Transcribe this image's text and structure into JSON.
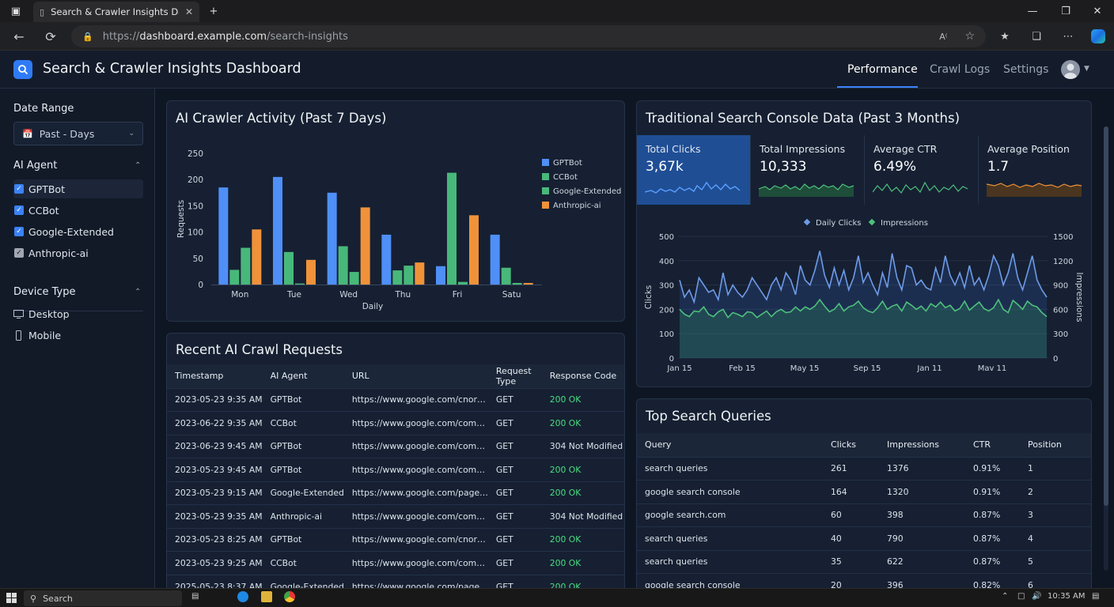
{
  "browser": {
    "tab_title": "Search & Crawler Insights Dash",
    "url_scheme": "https://",
    "url_host": "dashboard.example.com",
    "url_path": "/search-insights"
  },
  "app": {
    "title": "Search & Crawler Insights Dashboard",
    "nav": [
      "Performance",
      "Crawl Logs",
      "Settings"
    ],
    "accent": "#3b82f6"
  },
  "sidebar": {
    "date_range_heading": "Date Range",
    "date_range_value": "Past - Days",
    "agent_heading": "AI Agent",
    "agents": [
      "GPTBot",
      "CCBot",
      "Google-Extended",
      "Anthropic-ai"
    ],
    "device_heading": "Device Type",
    "devices": [
      "Desktop",
      "Mobile"
    ]
  },
  "crawler_panel": {
    "title": "AI Crawler Activity (Past 7 Days)"
  },
  "console_panel": {
    "title": "Traditional Search Console Data (Past 3 Months)",
    "stats": [
      {
        "label": "Total Clicks",
        "value": "3,67k"
      },
      {
        "label": "Total Impressions",
        "value": "10,333"
      },
      {
        "label": "Average CTR",
        "value": "6.49%"
      },
      {
        "label": "Average Position",
        "value": "1.7"
      }
    ]
  },
  "chart_data": [
    {
      "type": "bar",
      "title": "",
      "xlabel": "Daily",
      "ylabel": "Requests",
      "ylim": [
        0,
        250
      ],
      "yticks": [
        0,
        50,
        100,
        150,
        200,
        250
      ],
      "categories": [
        "Mon",
        "Tue",
        "Wed",
        "Thu",
        "Fri",
        "Satu"
      ],
      "legend": "top-right",
      "grid": false,
      "series": [
        {
          "name": "GPTBot",
          "color": "#4f8ff7",
          "values": [
            185,
            205,
            175,
            95,
            35,
            95
          ]
        },
        {
          "name": "CCBot",
          "color": "#48b87a",
          "values": [
            28,
            62,
            73,
            27,
            213,
            32
          ]
        },
        {
          "name": "Google-Extended",
          "color": "#48b87a",
          "values": [
            70,
            2,
            24,
            36,
            5,
            3
          ]
        },
        {
          "name": "Anthropic-ai",
          "color": "#f0923a",
          "values": [
            105,
            47,
            147,
            42,
            132,
            3
          ]
        }
      ]
    },
    {
      "type": "line",
      "title": "",
      "ylabel": "Clicks",
      "ylabel_right": "Impressions",
      "ylim": [
        0,
        500
      ],
      "ylim_right": [
        0,
        1500
      ],
      "yticks": [
        0,
        100,
        200,
        300,
        400,
        500
      ],
      "yticks_right": [
        0,
        300,
        600,
        900,
        1200,
        1500
      ],
      "xticks": [
        "Jan 15",
        "Feb 15",
        "May 15",
        "Sep 15",
        "Jan 11",
        "Mav 11"
      ],
      "legend": "top-center",
      "grid": true,
      "series": [
        {
          "name": "Daily Clicks",
          "color": "#6f9be8",
          "values": [
            320,
            250,
            280,
            230,
            330,
            300,
            270,
            280,
            240,
            350,
            260,
            300,
            270,
            250,
            280,
            330,
            300,
            270,
            240,
            300,
            330,
            280,
            350,
            320,
            260,
            380,
            320,
            300,
            360,
            440,
            340,
            290,
            370,
            300,
            360,
            280,
            330,
            420,
            310,
            350,
            300,
            260,
            350,
            290,
            430,
            330,
            280,
            380,
            370,
            300,
            320,
            290,
            280,
            370,
            310,
            420,
            340,
            300,
            350,
            290,
            380,
            300,
            330,
            280,
            340,
            420,
            380,
            300,
            350,
            430,
            330,
            280,
            350,
            420,
            320,
            280,
            250
          ]
        },
        {
          "name": "Impressions",
          "color": "#4ec07d",
          "values": [
            600,
            540,
            510,
            580,
            570,
            630,
            540,
            510,
            570,
            600,
            500,
            560,
            540,
            510,
            570,
            560,
            500,
            540,
            580,
            510,
            570,
            600,
            560,
            570,
            630,
            580,
            630,
            600,
            640,
            720,
            640,
            570,
            600,
            670,
            580,
            630,
            650,
            700,
            620,
            580,
            560,
            620,
            700,
            600,
            640,
            660,
            580,
            690,
            650,
            600,
            640,
            580,
            670,
            630,
            690,
            620,
            650,
            580,
            610,
            700,
            590,
            640,
            690,
            610,
            580,
            620,
            720,
            600,
            560,
            710,
            660,
            600,
            700,
            650,
            630,
            560,
            510
          ]
        }
      ]
    }
  ],
  "recent_requests": {
    "title": "Recent AI Crawl Requests",
    "columns": [
      "Timestamp",
      "AI Agent",
      "URL",
      "Request Type",
      "Response Code"
    ],
    "rows": [
      [
        "2023-05-23 9:35 AM",
        "GPTBot",
        "https://www.google.com/cnor…",
        "GET",
        "200 OK"
      ],
      [
        "2023-06-22 9:35 AM",
        "CCBot",
        "https://www.google.com/com…",
        "GET",
        "200 OK"
      ],
      [
        "2023-06-23 9:45 AM",
        "GPTBot",
        "https://www.google.com/com…",
        "GET",
        "304 Not Modified"
      ],
      [
        "2023-05-23 9:45 AM",
        "GPTBot",
        "https://www.google.com/com…",
        "GET",
        "200 OK"
      ],
      [
        "2023-05-23 9:15 AM",
        "Google-Extended",
        "https://www.google.com/page…",
        "GET",
        "200 OK"
      ],
      [
        "2023-05-23 9:35 AM",
        "Anthropic-ai",
        "https://www.google.com/com…",
        "GET",
        "304 Not Modified"
      ],
      [
        "2023-05-23 8:25 AM",
        "GPTBot",
        "https://www.google.com/cnor…",
        "GET",
        "200 OK"
      ],
      [
        "2023-05-23 9:25 AM",
        "CCBot",
        "https://www.google.com/com…",
        "GET",
        "200 OK"
      ],
      [
        "2025-05-23 8:37 AM",
        "Google-Extended",
        "https://www.google.com/page…",
        "GET",
        "200 OK"
      ]
    ]
  },
  "top_queries": {
    "title": "Top Search Queries",
    "columns": [
      "Query",
      "Clicks",
      "Impressions",
      "CTR",
      "Position"
    ],
    "rows": [
      [
        "search queries",
        "261",
        "1376",
        "0.91%",
        "1"
      ],
      [
        "google search console",
        "164",
        "1320",
        "0.91%",
        "2"
      ],
      [
        "google search.com",
        "60",
        "398",
        "0.87%",
        "3"
      ],
      [
        "search queries",
        "40",
        "790",
        "0.87%",
        "4"
      ],
      [
        "search queries",
        "35",
        "622",
        "0.87%",
        "5"
      ],
      [
        "google search console",
        "20",
        "396",
        "0.82%",
        "6"
      ]
    ]
  },
  "taskbar": {
    "search": "Search",
    "time": "10:35 AM"
  }
}
